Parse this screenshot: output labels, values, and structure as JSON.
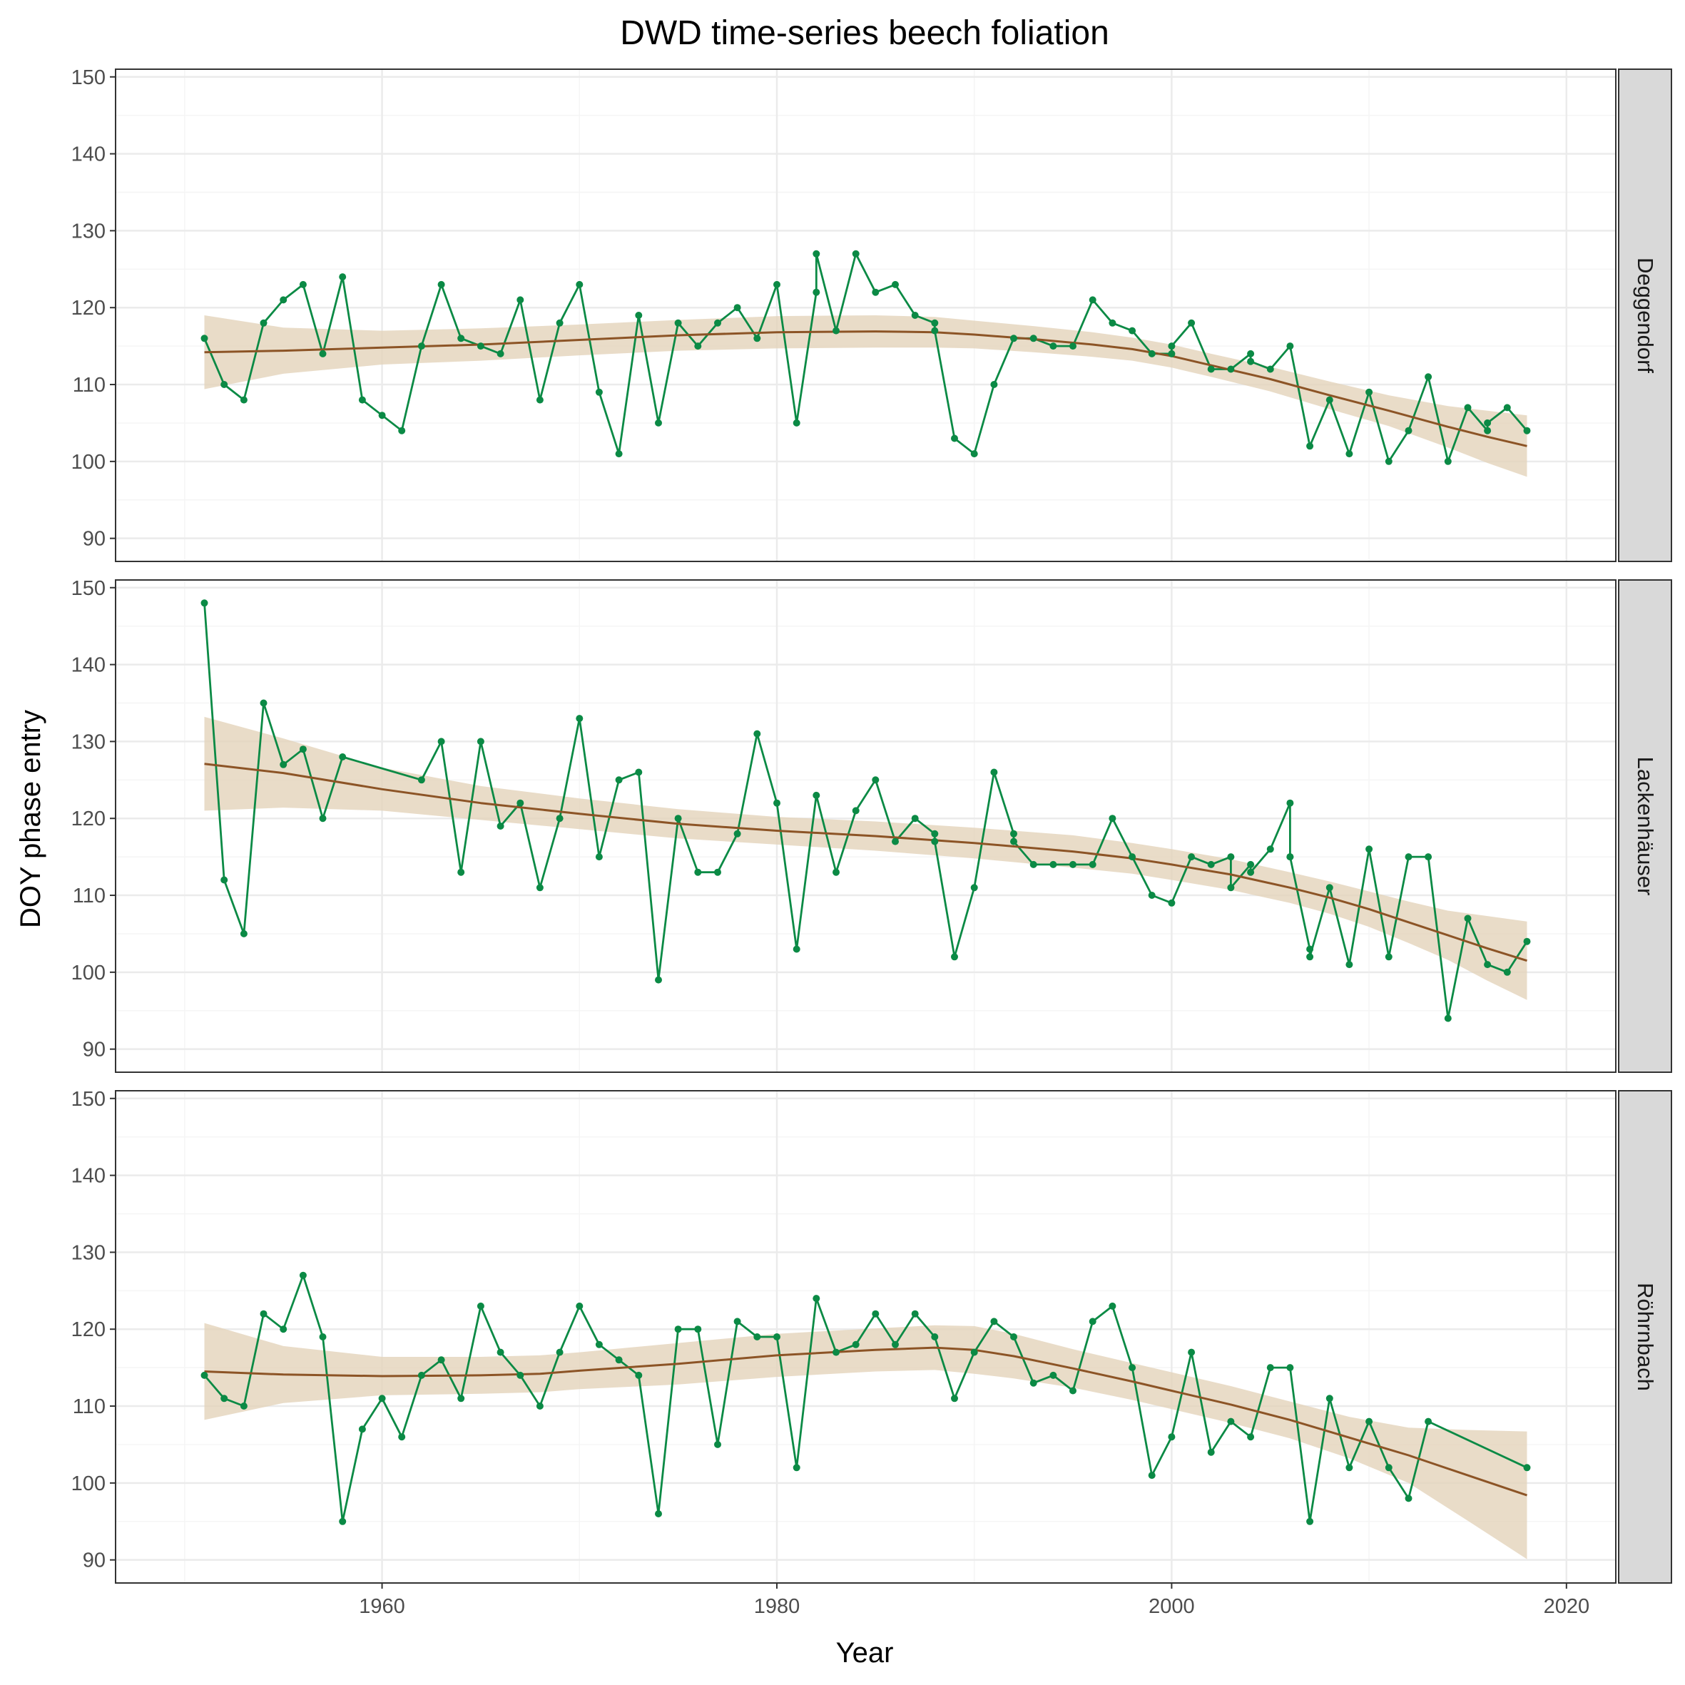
{
  "chart_data": {
    "type": "line",
    "title": "DWD time-series beech foliation",
    "xlabel": "Year",
    "ylabel": "DOY phase entry",
    "xlim": [
      1946.5,
      2022.5
    ],
    "ylim": [
      87,
      151
    ],
    "x_ticks": [
      1960,
      1980,
      2000,
      2020
    ],
    "y_ticks": [
      90,
      100,
      110,
      120,
      130,
      140,
      150
    ],
    "grid": true,
    "legend": "none",
    "colors": {
      "observed": "#0b8a45",
      "observed_light": "#4ca36a",
      "smooth": "#8c5426",
      "ribbon": "#e3d3ba",
      "strip_fill": "#d9d9d9",
      "grid_major": "#ebebeb",
      "grid_minor": "#f5f5f5"
    },
    "facets": [
      {
        "name": "Deggendorf",
        "x": [
          1951,
          1952,
          1953,
          1954,
          1955,
          1956,
          1957,
          1958,
          1959,
          1960,
          1961,
          1962,
          1963,
          1964,
          1965,
          1966,
          1967,
          1968,
          1969,
          1970,
          1971,
          1972,
          1973,
          1974,
          1975,
          1976,
          1977,
          1978,
          1979,
          1980,
          1981,
          1982,
          1982,
          1983,
          1984,
          1985,
          1986,
          1987,
          1988,
          1988,
          1989,
          1990,
          1991,
          1992,
          1993,
          1994,
          1995,
          1996,
          1997,
          1998,
          1999,
          2000,
          2000,
          2001,
          2002,
          2003,
          2004,
          2004,
          2005,
          2006,
          2007,
          2008,
          2009,
          2010,
          2011,
          2012,
          2013,
          2014,
          2015,
          2016,
          2016,
          2017,
          2018
        ],
        "y": [
          116,
          110,
          108,
          118,
          121,
          123,
          114,
          124,
          108,
          106,
          104,
          115,
          123,
          116,
          115,
          114,
          121,
          108,
          118,
          123,
          109,
          101,
          119,
          105,
          118,
          115,
          118,
          120,
          116,
          123,
          105,
          122,
          127,
          117,
          127,
          122,
          123,
          119,
          118,
          117,
          103,
          101,
          110,
          116,
          116,
          115,
          115,
          121,
          118,
          117,
          114,
          114,
          115,
          118,
          112,
          112,
          114,
          113,
          112,
          115,
          102,
          108,
          101,
          109,
          100,
          104,
          111,
          100,
          107,
          104,
          105,
          107,
          104
        ],
        "smooth": [
          [
            1951,
            114.2
          ],
          [
            1955,
            114.4
          ],
          [
            1960,
            114.8
          ],
          [
            1965,
            115.2
          ],
          [
            1970,
            115.8
          ],
          [
            1975,
            116.4
          ],
          [
            1980,
            116.8
          ],
          [
            1985,
            116.9
          ],
          [
            1988,
            116.8
          ],
          [
            1990,
            116.5
          ],
          [
            1993,
            115.9
          ],
          [
            1996,
            115.2
          ],
          [
            1998,
            114.6
          ],
          [
            2000,
            113.7
          ],
          [
            2002,
            112.5
          ],
          [
            2005,
            110.7
          ],
          [
            2008,
            108.6
          ],
          [
            2011,
            106.6
          ],
          [
            2014,
            104.5
          ],
          [
            2016,
            103.2
          ],
          [
            2018,
            102.0
          ]
        ],
        "band_upper": [
          [
            1951,
            119.0
          ],
          [
            1955,
            117.4
          ],
          [
            1960,
            117.0
          ],
          [
            1965,
            117.3
          ],
          [
            1970,
            117.8
          ],
          [
            1975,
            118.4
          ],
          [
            1980,
            118.9
          ],
          [
            1985,
            119.0
          ],
          [
            1988,
            118.8
          ],
          [
            1990,
            118.3
          ],
          [
            1993,
            117.6
          ],
          [
            1996,
            116.8
          ],
          [
            1998,
            116.1
          ],
          [
            2000,
            115.2
          ],
          [
            2002,
            114.0
          ],
          [
            2005,
            112.3
          ],
          [
            2008,
            110.4
          ],
          [
            2011,
            108.6
          ],
          [
            2014,
            107.2
          ],
          [
            2016,
            106.6
          ],
          [
            2018,
            106.0
          ]
        ],
        "band_lower": [
          [
            1951,
            109.4
          ],
          [
            1955,
            111.4
          ],
          [
            1960,
            112.6
          ],
          [
            1965,
            113.1
          ],
          [
            1970,
            113.8
          ],
          [
            1975,
            114.4
          ],
          [
            1980,
            114.7
          ],
          [
            1985,
            114.8
          ],
          [
            1988,
            114.8
          ],
          [
            1990,
            114.7
          ],
          [
            1993,
            114.2
          ],
          [
            1996,
            113.6
          ],
          [
            1998,
            113.1
          ],
          [
            2000,
            112.2
          ],
          [
            2002,
            111.0
          ],
          [
            2005,
            109.1
          ],
          [
            2008,
            106.8
          ],
          [
            2011,
            104.6
          ],
          [
            2014,
            101.8
          ],
          [
            2016,
            99.8
          ],
          [
            2018,
            98.0
          ]
        ]
      },
      {
        "name": "Lackenhäuser",
        "x": [
          1951,
          1952,
          1953,
          1954,
          1955,
          1956,
          1957,
          1958,
          1962,
          1963,
          1964,
          1965,
          1966,
          1967,
          1968,
          1969,
          1970,
          1971,
          1972,
          1973,
          1974,
          1975,
          1976,
          1977,
          1978,
          1979,
          1980,
          1981,
          1982,
          1983,
          1984,
          1985,
          1986,
          1987,
          1988,
          1988,
          1989,
          1990,
          1991,
          1992,
          1992,
          1993,
          1994,
          1995,
          1996,
          1997,
          1998,
          1999,
          2000,
          2001,
          2002,
          2003,
          2003,
          2004,
          2004,
          2005,
          2006,
          2006,
          2006,
          2007,
          2007,
          2008,
          2009,
          2010,
          2011,
          2012,
          2013,
          2014,
          2015,
          2016,
          2017,
          2018
        ],
        "y": [
          148,
          112,
          105,
          135,
          127,
          129,
          120,
          128,
          125,
          130,
          113,
          130,
          119,
          122,
          111,
          120,
          133,
          115,
          125,
          126,
          99,
          120,
          113,
          113,
          118,
          131,
          122,
          103,
          123,
          113,
          121,
          125,
          117,
          120,
          118,
          117,
          102,
          111,
          126,
          118,
          117,
          114,
          114,
          114,
          114,
          120,
          115,
          110,
          109,
          115,
          114,
          115,
          111,
          114,
          113,
          116,
          122,
          115,
          115,
          103,
          102,
          111,
          101,
          116,
          102,
          115,
          115,
          94,
          107,
          101,
          100,
          104
        ],
        "smooth": [
          [
            1951,
            127.1
          ],
          [
            1955,
            125.9
          ],
          [
            1960,
            123.8
          ],
          [
            1965,
            122.0
          ],
          [
            1970,
            120.6
          ],
          [
            1975,
            119.3
          ],
          [
            1980,
            118.4
          ],
          [
            1985,
            117.7
          ],
          [
            1990,
            116.8
          ],
          [
            1995,
            115.7
          ],
          [
            1998,
            114.8
          ],
          [
            2000,
            114.0
          ],
          [
            2003,
            112.7
          ],
          [
            2006,
            111.0
          ],
          [
            2008,
            109.7
          ],
          [
            2010,
            108.2
          ],
          [
            2012,
            106.5
          ],
          [
            2014,
            104.8
          ],
          [
            2016,
            103.1
          ],
          [
            2018,
            101.5
          ]
        ],
        "band_upper": [
          [
            1951,
            133.2
          ],
          [
            1955,
            130.4
          ],
          [
            1960,
            126.6
          ],
          [
            1965,
            124.2
          ],
          [
            1970,
            122.6
          ],
          [
            1975,
            121.2
          ],
          [
            1980,
            120.2
          ],
          [
            1985,
            119.6
          ],
          [
            1990,
            118.8
          ],
          [
            1995,
            117.8
          ],
          [
            1998,
            116.8
          ],
          [
            2000,
            116.0
          ],
          [
            2003,
            114.7
          ],
          [
            2006,
            113.0
          ],
          [
            2008,
            111.8
          ],
          [
            2010,
            110.5
          ],
          [
            2012,
            109.2
          ],
          [
            2014,
            108.0
          ],
          [
            2016,
            107.3
          ],
          [
            2018,
            106.6
          ]
        ],
        "band_lower": [
          [
            1951,
            121.0
          ],
          [
            1955,
            121.4
          ],
          [
            1960,
            121.0
          ],
          [
            1965,
            119.8
          ],
          [
            1970,
            118.6
          ],
          [
            1975,
            117.4
          ],
          [
            1980,
            116.6
          ],
          [
            1985,
            115.8
          ],
          [
            1990,
            114.8
          ],
          [
            1995,
            113.6
          ],
          [
            1998,
            112.8
          ],
          [
            2000,
            112.0
          ],
          [
            2003,
            110.7
          ],
          [
            2006,
            109.0
          ],
          [
            2008,
            107.6
          ],
          [
            2010,
            105.9
          ],
          [
            2012,
            103.8
          ],
          [
            2014,
            101.6
          ],
          [
            2016,
            98.9
          ],
          [
            2018,
            96.4
          ]
        ]
      },
      {
        "name": "Röhrnbach",
        "x": [
          1951,
          1952,
          1953,
          1954,
          1955,
          1956,
          1957,
          1958,
          1959,
          1960,
          1961,
          1962,
          1963,
          1964,
          1965,
          1966,
          1967,
          1968,
          1969,
          1970,
          1971,
          1972,
          1973,
          1974,
          1975,
          1976,
          1977,
          1978,
          1979,
          1980,
          1981,
          1982,
          1983,
          1984,
          1985,
          1986,
          1987,
          1988,
          1989,
          1990,
          1991,
          1992,
          1993,
          1994,
          1995,
          1996,
          1997,
          1998,
          1999,
          2000,
          2001,
          2002,
          2003,
          2004,
          2005,
          2006,
          2007,
          2008,
          2009,
          2010,
          2011,
          2012,
          2013,
          2018
        ],
        "y": [
          114,
          111,
          110,
          122,
          120,
          127,
          119,
          95,
          107,
          111,
          106,
          114,
          116,
          111,
          123,
          117,
          114,
          110,
          117,
          123,
          118,
          116,
          114,
          96,
          120,
          120,
          105,
          121,
          119,
          119,
          102,
          124,
          117,
          118,
          122,
          118,
          122,
          119,
          111,
          117,
          121,
          119,
          113,
          114,
          112,
          121,
          123,
          115,
          101,
          106,
          117,
          104,
          108,
          106,
          115,
          115,
          95,
          111,
          102,
          108,
          102,
          98,
          108,
          102
        ],
        "smooth": [
          [
            1951,
            114.5
          ],
          [
            1955,
            114.1
          ],
          [
            1960,
            113.9
          ],
          [
            1965,
            114.0
          ],
          [
            1968,
            114.2
          ],
          [
            1970,
            114.6
          ],
          [
            1975,
            115.5
          ],
          [
            1980,
            116.6
          ],
          [
            1985,
            117.3
          ],
          [
            1988,
            117.6
          ],
          [
            1990,
            117.3
          ],
          [
            1992,
            116.5
          ],
          [
            1995,
            114.9
          ],
          [
            1998,
            113.2
          ],
          [
            2000,
            112.0
          ],
          [
            2003,
            110.2
          ],
          [
            2006,
            108.2
          ],
          [
            2009,
            105.9
          ],
          [
            2012,
            103.6
          ],
          [
            2015,
            101.0
          ],
          [
            2018,
            98.4
          ]
        ],
        "band_upper": [
          [
            1951,
            120.8
          ],
          [
            1955,
            117.8
          ],
          [
            1960,
            116.4
          ],
          [
            1965,
            116.4
          ],
          [
            1968,
            116.6
          ],
          [
            1970,
            117.0
          ],
          [
            1975,
            118.2
          ],
          [
            1980,
            119.4
          ],
          [
            1985,
            120.1
          ],
          [
            1988,
            120.5
          ],
          [
            1990,
            120.4
          ],
          [
            1992,
            119.4
          ],
          [
            1995,
            117.4
          ],
          [
            1998,
            115.6
          ],
          [
            2000,
            114.4
          ],
          [
            2003,
            112.6
          ],
          [
            2006,
            110.6
          ],
          [
            2009,
            108.6
          ],
          [
            2012,
            107.2
          ],
          [
            2015,
            106.9
          ],
          [
            2018,
            106.7
          ]
        ],
        "band_lower": [
          [
            1951,
            108.2
          ],
          [
            1955,
            110.4
          ],
          [
            1960,
            111.4
          ],
          [
            1965,
            111.6
          ],
          [
            1968,
            111.8
          ],
          [
            1970,
            112.2
          ],
          [
            1975,
            112.8
          ],
          [
            1980,
            113.8
          ],
          [
            1985,
            114.5
          ],
          [
            1988,
            114.7
          ],
          [
            1990,
            114.2
          ],
          [
            1992,
            113.6
          ],
          [
            1995,
            112.4
          ],
          [
            1998,
            110.8
          ],
          [
            2000,
            109.6
          ],
          [
            2003,
            107.8
          ],
          [
            2006,
            105.8
          ],
          [
            2009,
            103.2
          ],
          [
            2012,
            100.0
          ],
          [
            2015,
            95.1
          ],
          [
            2018,
            90.1
          ]
        ]
      }
    ]
  }
}
